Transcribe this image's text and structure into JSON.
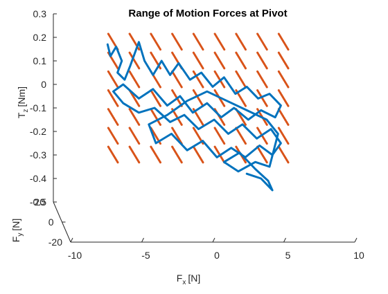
{
  "chart_data": {
    "type": "line",
    "title": "Range of Motion Forces at Pivot",
    "xlabel": {
      "base": "F",
      "sub": "x",
      "unit": "[N]"
    },
    "ylabel": {
      "base": "F",
      "sub": "y",
      "unit": "[N]"
    },
    "zlabel": {
      "base": "T",
      "sub": "z",
      "unit": "[Nm]"
    },
    "xlim": [
      -10,
      10
    ],
    "ylim": [
      -20,
      20
    ],
    "zlim": [
      -0.5,
      0.3
    ],
    "xticks": [
      "-10",
      "-5",
      "0",
      "5",
      "10"
    ],
    "yticks": [
      "-20",
      "0",
      "20"
    ],
    "zticks": [
      "-0.5",
      "-0.4",
      "-0.3",
      "-0.2",
      "-0.1",
      "0",
      "0.1",
      "0.2",
      "0.3"
    ],
    "grid": false,
    "legend": "none",
    "series": [
      {
        "color": "#0072BD",
        "description": "measured trajectory (approximate)",
        "points": [
          [
            -7.4,
            0,
            0.17
          ],
          [
            -7.2,
            0,
            0.12
          ],
          [
            -6.8,
            0,
            0.16
          ],
          [
            -6.4,
            0,
            0.1
          ],
          [
            -6.7,
            0,
            0.05
          ],
          [
            -6.2,
            0,
            0.02
          ],
          [
            -5.8,
            0,
            0.08
          ],
          [
            -5.2,
            0,
            0.18
          ],
          [
            -4.8,
            0,
            0.1
          ],
          [
            -4.2,
            0,
            0.04
          ],
          [
            -3.6,
            0,
            0.1
          ],
          [
            -3.0,
            0,
            0.04
          ],
          [
            -2.4,
            0,
            0.09
          ],
          [
            -1.6,
            0,
            0.02
          ],
          [
            -0.8,
            0,
            0.05
          ],
          [
            0.0,
            0,
            -0.01
          ],
          [
            0.8,
            0,
            0.03
          ],
          [
            1.6,
            0,
            -0.04
          ],
          [
            2.4,
            0,
            -0.01
          ],
          [
            3.2,
            0,
            -0.06
          ],
          [
            4.0,
            0,
            -0.04
          ],
          [
            4.8,
            0,
            -0.09
          ],
          [
            4.4,
            0,
            -0.14
          ],
          [
            3.4,
            0,
            -0.11
          ],
          [
            2.5,
            0,
            -0.15
          ],
          [
            1.5,
            0,
            -0.1
          ],
          [
            0.6,
            0,
            -0.14
          ],
          [
            -0.4,
            0,
            -0.08
          ],
          [
            -1.4,
            0,
            -0.12
          ],
          [
            -2.3,
            0,
            -0.05
          ],
          [
            -3.2,
            0,
            -0.09
          ],
          [
            -4.2,
            0,
            -0.02
          ],
          [
            -5.2,
            0,
            -0.06
          ],
          [
            -6.3,
            0,
            0.0
          ],
          [
            -7.0,
            0,
            -0.03
          ],
          [
            -6.3,
            0,
            -0.08
          ],
          [
            -5.2,
            0,
            -0.12
          ],
          [
            -4.1,
            0,
            -0.1
          ],
          [
            -3.0,
            0,
            -0.16
          ],
          [
            -2.0,
            0,
            -0.13
          ],
          [
            -1.0,
            0,
            -0.19
          ],
          [
            0.1,
            0,
            -0.15
          ],
          [
            1.1,
            0,
            -0.21
          ],
          [
            2.1,
            0,
            -0.17
          ],
          [
            3.1,
            0,
            -0.23
          ],
          [
            4.1,
            0,
            -0.19
          ],
          [
            4.8,
            0,
            -0.25
          ],
          [
            4.2,
            0,
            -0.3
          ],
          [
            3.3,
            0,
            -0.26
          ],
          [
            2.3,
            0,
            -0.31
          ],
          [
            1.3,
            0,
            -0.27
          ],
          [
            0.3,
            0,
            -0.31
          ],
          [
            -0.7,
            0,
            -0.24
          ],
          [
            -1.8,
            0,
            -0.28
          ],
          [
            -2.9,
            0,
            -0.21
          ],
          [
            -4.0,
            0,
            -0.25
          ],
          [
            -4.5,
            0,
            -0.17
          ],
          [
            -3.2,
            0,
            -0.13
          ],
          [
            -1.8,
            0,
            -0.07
          ],
          [
            -0.4,
            0,
            -0.03
          ],
          [
            1.0,
            0,
            -0.07
          ],
          [
            2.4,
            0,
            -0.11
          ],
          [
            3.8,
            0,
            -0.15
          ],
          [
            4.6,
            0,
            -0.21
          ],
          [
            4.0,
            0,
            -0.35
          ],
          [
            3.0,
            0,
            -0.33
          ],
          [
            1.8,
            0,
            -0.37
          ],
          [
            0.8,
            0,
            -0.33
          ],
          [
            1.9,
            0,
            -0.29
          ],
          [
            3.0,
            0,
            -0.36
          ],
          [
            3.9,
            0,
            -0.41
          ],
          [
            4.2,
            0,
            -0.45
          ],
          [
            3.4,
            0,
            -0.4
          ],
          [
            2.4,
            0,
            -0.38
          ]
        ]
      },
      {
        "color": "#D95319",
        "description": "calibration grid segments (approximate)",
        "grid_x": [
          -7,
          -5.5,
          -4,
          -2.5,
          -1,
          0.5,
          2,
          3.5,
          5
        ],
        "grid_z": [
          0.18,
          0.1,
          0.02,
          -0.06,
          -0.14,
          -0.22,
          -0.3
        ],
        "segment_dx": 0.7,
        "segment_dz": 0.07
      }
    ]
  }
}
